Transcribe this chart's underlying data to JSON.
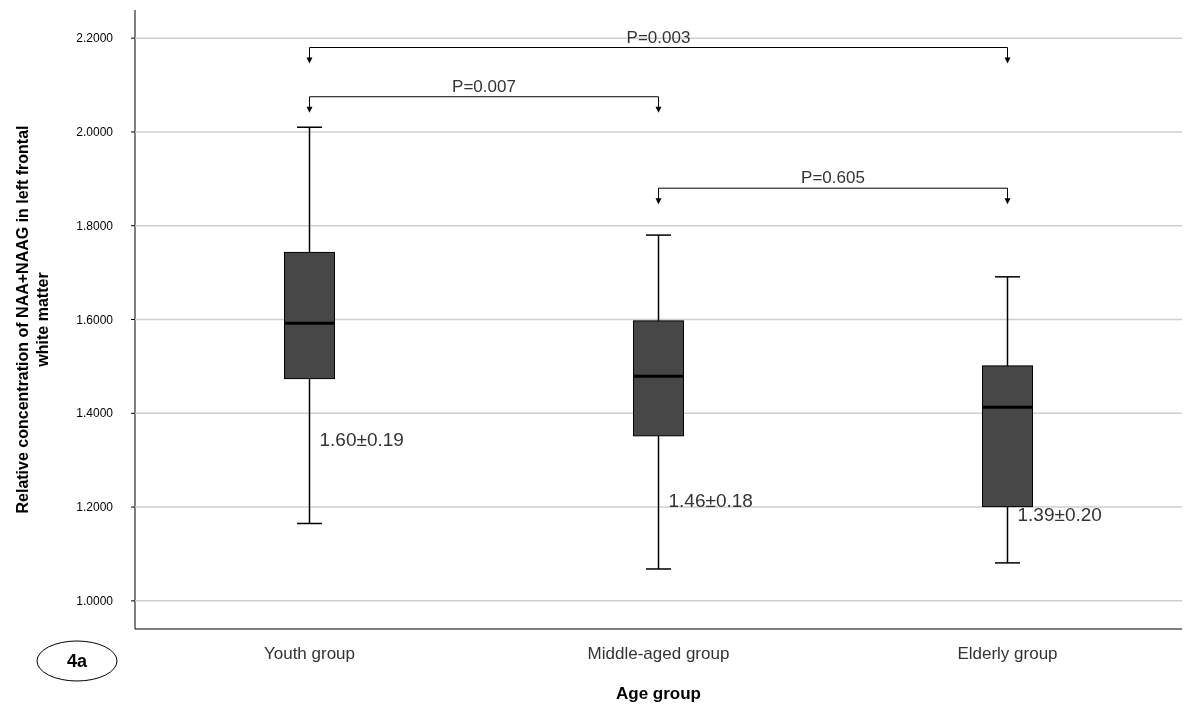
{
  "chart_data": {
    "type": "box",
    "xlabel": "Age group",
    "ylabel": "Relative concentration of NAA+NAAG in left frontal white matter",
    "categories": [
      "Youth group",
      "Middle-aged group",
      "Elderly group"
    ],
    "boxes": [
      {
        "low": 1.165,
        "q1": 1.474,
        "median": 1.592,
        "q3": 1.743,
        "high": 2.01
      },
      {
        "low": 1.068,
        "q1": 1.352,
        "median": 1.479,
        "q3": 1.597,
        "high": 1.78
      },
      {
        "low": 1.081,
        "q1": 1.201,
        "median": 1.413,
        "q3": 1.501,
        "high": 1.691
      }
    ],
    "color": "#474747",
    "ylim": [
      0.94,
      2.26
    ],
    "yticks": [
      {
        "value": 1.0,
        "label": "1.0000"
      },
      {
        "value": 1.2,
        "label": "1.2000"
      },
      {
        "value": 1.4,
        "label": "1.4000"
      },
      {
        "value": 1.6,
        "label": "1.6000"
      },
      {
        "value": 1.8,
        "label": "1.8000"
      },
      {
        "value": 2.0,
        "label": "2.0000"
      },
      {
        "value": 2.2,
        "label": "2.2000"
      }
    ],
    "grid": "y",
    "annotations": [
      "P=0.003",
      "P=0.007",
      "P=0.605",
      "1.60±0.19",
      "1.46±0.18",
      "1.39±0.20",
      "4a"
    ]
  }
}
